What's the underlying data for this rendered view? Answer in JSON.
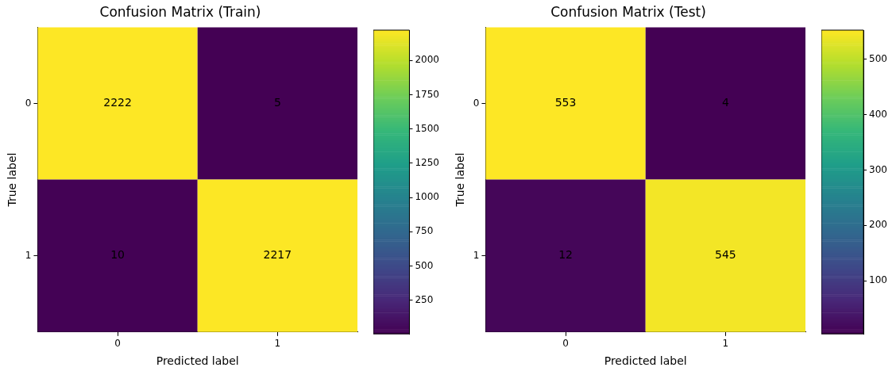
{
  "chart_data": [
    {
      "type": "heatmap",
      "title": "Confusion Matrix (Train)",
      "xlabel": "Predicted label",
      "ylabel": "True label",
      "categories": [
        "0",
        "1"
      ],
      "y_categories": [
        "0",
        "1"
      ],
      "cells": [
        [
          2222,
          5
        ],
        [
          10,
          2217
        ]
      ],
      "data_labels": true,
      "clim": [
        5,
        2222
      ],
      "cticks": [
        250,
        500,
        750,
        1000,
        1250,
        1500,
        1750,
        2000
      ]
    },
    {
      "type": "heatmap",
      "title": "Confusion Matrix (Test)",
      "xlabel": "Predicted label",
      "ylabel": "True label",
      "categories": [
        "0",
        "1"
      ],
      "y_categories": [
        "0",
        "1"
      ],
      "cells": [
        [
          553,
          4
        ],
        [
          12,
          545
        ]
      ],
      "data_labels": true,
      "clim": [
        4,
        553
      ],
      "cticks": [
        100,
        200,
        300,
        400,
        500
      ]
    }
  ]
}
